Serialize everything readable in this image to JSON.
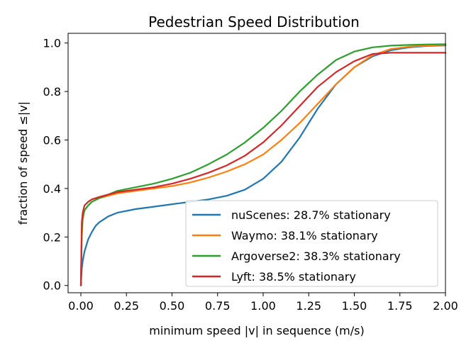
{
  "chart_data": {
    "type": "line",
    "title": "Pedestrian Speed Distribution",
    "xlabel": "minimum speed |v| in sequence (m/s)",
    "ylabel": "fraction of speed ≤|v|",
    "xlim": [
      -0.07,
      2.0
    ],
    "ylim": [
      -0.03,
      1.04
    ],
    "xticks": [
      0.0,
      0.25,
      0.5,
      0.75,
      1.0,
      1.25,
      1.5,
      1.75,
      2.0
    ],
    "xtick_labels": [
      "0.00",
      "0.25",
      "0.50",
      "0.75",
      "1.00",
      "1.25",
      "1.50",
      "1.75",
      "2.00"
    ],
    "yticks": [
      0.0,
      0.2,
      0.4,
      0.6,
      0.8,
      1.0
    ],
    "ytick_labels": [
      "0.0",
      "0.2",
      "0.4",
      "0.6",
      "0.8",
      "1.0"
    ],
    "grid": false,
    "legend_position": "lower-right",
    "series": [
      {
        "name": "nuScenes: 28.7% stationary",
        "color": "#1f77b4",
        "x": [
          0,
          0.005,
          0.01,
          0.02,
          0.04,
          0.06,
          0.08,
          0.1,
          0.15,
          0.2,
          0.3,
          0.4,
          0.5,
          0.6,
          0.7,
          0.8,
          0.9,
          1.0,
          1.1,
          1.2,
          1.3,
          1.4,
          1.5,
          1.6,
          1.7,
          1.8,
          1.9,
          2.0
        ],
        "y": [
          0.0,
          0.07,
          0.1,
          0.14,
          0.19,
          0.22,
          0.245,
          0.26,
          0.285,
          0.3,
          0.315,
          0.325,
          0.335,
          0.345,
          0.355,
          0.37,
          0.395,
          0.44,
          0.51,
          0.61,
          0.73,
          0.83,
          0.9,
          0.945,
          0.97,
          0.982,
          0.988,
          0.99
        ]
      },
      {
        "name": "Waymo: 38.1% stationary",
        "color": "#ff7f0e",
        "x": [
          0,
          0.005,
          0.01,
          0.02,
          0.04,
          0.06,
          0.1,
          0.15,
          0.2,
          0.3,
          0.4,
          0.5,
          0.6,
          0.7,
          0.8,
          0.9,
          1.0,
          1.1,
          1.2,
          1.3,
          1.4,
          1.5,
          1.6,
          1.7,
          1.8,
          1.9,
          2.0
        ],
        "y": [
          0.0,
          0.2,
          0.27,
          0.31,
          0.33,
          0.345,
          0.36,
          0.37,
          0.38,
          0.39,
          0.4,
          0.41,
          0.425,
          0.445,
          0.47,
          0.5,
          0.54,
          0.6,
          0.67,
          0.75,
          0.83,
          0.9,
          0.95,
          0.975,
          0.985,
          0.99,
          0.992
        ]
      },
      {
        "name": "Argoverse2: 38.3% stationary",
        "color": "#2ca02c",
        "x": [
          0,
          0.005,
          0.01,
          0.02,
          0.04,
          0.06,
          0.1,
          0.15,
          0.2,
          0.3,
          0.4,
          0.5,
          0.6,
          0.7,
          0.8,
          0.9,
          1.0,
          1.1,
          1.2,
          1.3,
          1.4,
          1.5,
          1.6,
          1.7,
          1.8,
          1.9,
          2.0
        ],
        "y": [
          0.0,
          0.22,
          0.28,
          0.31,
          0.33,
          0.345,
          0.36,
          0.375,
          0.39,
          0.405,
          0.42,
          0.44,
          0.465,
          0.5,
          0.54,
          0.59,
          0.65,
          0.72,
          0.8,
          0.87,
          0.93,
          0.965,
          0.982,
          0.989,
          0.992,
          0.994,
          0.995
        ]
      },
      {
        "name": "Lyft: 38.5% stationary",
        "color": "#d62728",
        "x": [
          0,
          0.005,
          0.01,
          0.02,
          0.04,
          0.06,
          0.1,
          0.15,
          0.2,
          0.3,
          0.4,
          0.5,
          0.6,
          0.7,
          0.8,
          0.9,
          1.0,
          1.1,
          1.2,
          1.3,
          1.4,
          1.5,
          1.55,
          1.6,
          1.7,
          1.8,
          1.9,
          2.0
        ],
        "y": [
          0.0,
          0.26,
          0.3,
          0.33,
          0.345,
          0.355,
          0.365,
          0.375,
          0.385,
          0.395,
          0.405,
          0.42,
          0.44,
          0.465,
          0.495,
          0.535,
          0.59,
          0.66,
          0.74,
          0.82,
          0.88,
          0.925,
          0.94,
          0.955,
          0.96,
          0.96,
          0.96,
          0.96
        ]
      }
    ]
  }
}
